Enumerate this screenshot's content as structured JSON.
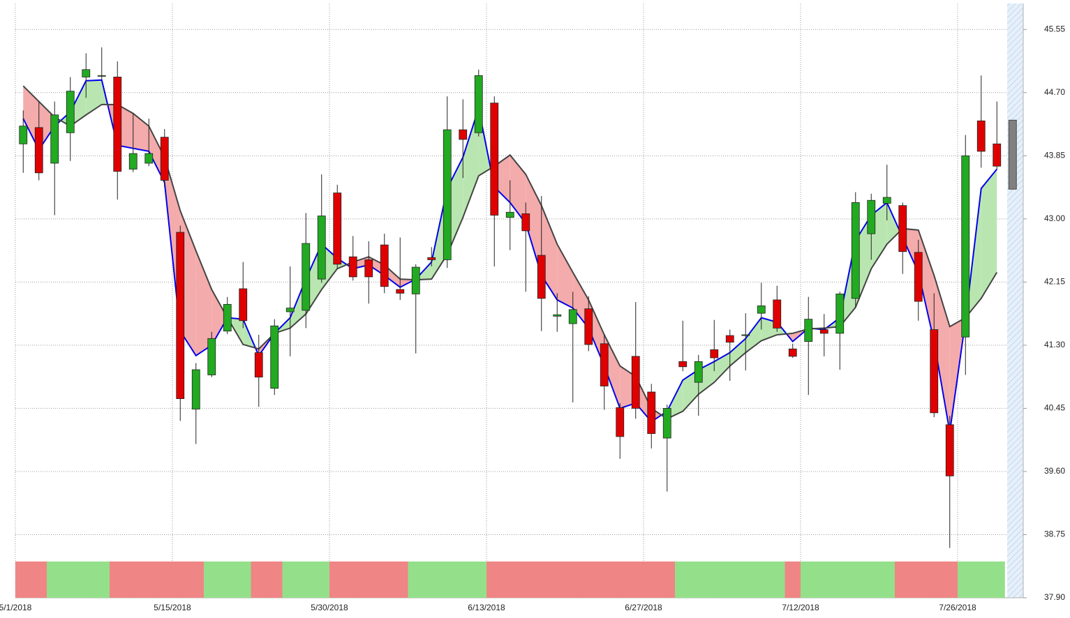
{
  "chart_data": {
    "type": "candlestick",
    "categories": [
      "5/1/2018",
      null,
      null,
      null,
      null,
      null,
      null,
      null,
      null,
      null,
      "5/15/2018",
      null,
      null,
      null,
      null,
      null,
      null,
      null,
      null,
      null,
      "5/30/2018",
      null,
      null,
      null,
      null,
      null,
      null,
      null,
      null,
      null,
      "6/13/2018",
      null,
      null,
      null,
      null,
      null,
      null,
      null,
      null,
      null,
      "6/27/2018",
      null,
      null,
      null,
      null,
      null,
      null,
      null,
      null,
      null,
      "7/12/2018",
      null,
      null,
      null,
      null,
      null,
      null,
      null,
      null,
      null,
      "7/26/2018",
      null,
      null
    ],
    "open": [
      44.01,
      44.23,
      43.75,
      44.16,
      44.91,
      44.92,
      44.91,
      43.67,
      43.75,
      44.1,
      42.82,
      40.44,
      40.9,
      41.49,
      42.06,
      41.2,
      40.72,
      41.75,
      41.77,
      42.19,
      43.35,
      42.49,
      42.45,
      42.65,
      42.05,
      41.99,
      42.48,
      42.45,
      44.2,
      44.16,
      44.56,
      43.02,
      43.07,
      42.51,
      41.69,
      41.59,
      41.79,
      41.32,
      40.46,
      41.15,
      40.67,
      40.05,
      41.08,
      40.8,
      41.24,
      41.43,
      41.43,
      41.73,
      41.91,
      41.25,
      41.35,
      41.51,
      41.46,
      41.93,
      42.8,
      43.21,
      43.18,
      42.55,
      41.51,
      40.23,
      41.41,
      44.32,
      44.01
    ],
    "high": [
      44.46,
      44.58,
      44.58,
      44.91,
      45.23,
      45.31,
      45.12,
      44.42,
      44.35,
      44.21,
      42.91,
      41.06,
      41.48,
      41.95,
      42.42,
      41.44,
      41.65,
      42.36,
      43.08,
      43.6,
      43.46,
      42.77,
      42.7,
      42.8,
      42.75,
      42.39,
      42.62,
      44.65,
      44.61,
      45.01,
      44.65,
      43.52,
      43.22,
      43.31,
      42.0,
      42.02,
      41.96,
      41.44,
      40.52,
      41.88,
      40.78,
      40.5,
      41.63,
      41.17,
      41.64,
      41.51,
      41.73,
      42.14,
      42.1,
      41.32,
      41.95,
      41.72,
      42.02,
      43.36,
      43.34,
      43.73,
      43.22,
      42.72,
      42.0,
      40.35,
      44.13,
      44.93,
      44.58
    ],
    "low": [
      43.62,
      43.52,
      43.05,
      43.78,
      44.63,
      44.88,
      43.26,
      43.63,
      43.71,
      43.43,
      40.28,
      39.97,
      40.87,
      41.45,
      41.53,
      40.47,
      40.63,
      41.15,
      41.53,
      42.14,
      42.33,
      42.17,
      41.86,
      42.0,
      41.91,
      41.19,
      42.36,
      42.34,
      43.55,
      44.11,
      42.36,
      42.58,
      42.02,
      41.49,
      41.48,
      40.53,
      41.22,
      40.43,
      39.77,
      40.31,
      39.91,
      39.33,
      40.95,
      40.35,
      40.95,
      40.82,
      40.96,
      41.51,
      41.48,
      41.13,
      40.63,
      41.15,
      40.97,
      41.81,
      42.45,
      42.98,
      42.26,
      41.63,
      40.33,
      38.57,
      40.9,
      43.69,
      43.67
    ],
    "close": [
      44.25,
      43.62,
      44.4,
      44.72,
      45.01,
      44.93,
      43.64,
      43.88,
      43.88,
      43.52,
      40.58,
      40.97,
      41.39,
      41.85,
      41.63,
      40.87,
      41.56,
      41.8,
      42.67,
      43.04,
      42.39,
      42.22,
      42.22,
      42.09,
      42.0,
      42.35,
      42.45,
      44.2,
      44.07,
      44.93,
      43.05,
      43.09,
      42.84,
      41.93,
      41.71,
      41.78,
      41.31,
      40.75,
      40.07,
      40.45,
      40.11,
      40.45,
      41.01,
      41.08,
      41.13,
      41.34,
      41.44,
      41.83,
      41.53,
      41.15,
      41.65,
      41.46,
      41.99,
      43.22,
      43.25,
      43.29,
      42.56,
      41.89,
      40.39,
      39.54,
      43.85,
      43.91,
      43.71
    ],
    "pending": {
      "open": 44.33,
      "close": 43.4,
      "color": "#808080"
    },
    "up_color": "#22aa22",
    "down_color": "#e00000",
    "series": [
      {
        "color": "#0000ee",
        "values": [
          44.35,
          43.93,
          44.25,
          44.44,
          44.86,
          44.87,
          43.99,
          43.95,
          43.91,
          43.49,
          41.49,
          41.16,
          41.3,
          41.67,
          41.65,
          41.16,
          41.46,
          41.67,
          42.19,
          42.66,
          42.47,
          42.33,
          42.38,
          42.24,
          42.08,
          42.19,
          42.42,
          43.41,
          43.83,
          44.49,
          43.43,
          43.22,
          42.94,
          42.24,
          41.91,
          41.8,
          41.53,
          41.02,
          40.45,
          40.52,
          40.27,
          40.41,
          40.83,
          40.97,
          41.08,
          41.2,
          41.39,
          41.67,
          41.61,
          41.35,
          41.53,
          41.51,
          41.67,
          42.71,
          43.05,
          43.22,
          42.75,
          42.28,
          41.35,
          40.13,
          41.63,
          43.41,
          43.67
        ]
      },
      {
        "color": "#444444",
        "values": [
          44.79,
          44.58,
          44.37,
          44.25,
          44.4,
          44.54,
          44.54,
          44.42,
          44.25,
          43.83,
          43.11,
          42.57,
          42.05,
          41.67,
          41.31,
          41.25,
          41.46,
          41.53,
          41.72,
          42.05,
          42.33,
          42.42,
          42.49,
          42.38,
          42.19,
          42.18,
          42.19,
          42.52,
          43.02,
          43.58,
          43.71,
          43.86,
          43.6,
          43.18,
          42.66,
          42.28,
          41.91,
          41.44,
          41.02,
          40.88,
          40.45,
          40.31,
          40.41,
          40.64,
          40.8,
          41.02,
          41.2,
          41.36,
          41.44,
          41.46,
          41.52,
          41.53,
          41.55,
          41.81,
          42.33,
          42.66,
          42.87,
          42.85,
          42.24,
          41.55,
          41.67,
          41.93,
          42.28
        ]
      }
    ],
    "fill_up_color": "#b9e6b0",
    "fill_down_color": "#f4abab",
    "band_colors": [
      "#f08585",
      "#f08585",
      "#94e08a",
      "#94e08a",
      "#94e08a",
      "#94e08a",
      "#f08585",
      "#f08585",
      "#f08585",
      "#f08585",
      "#f08585",
      "#f08585",
      "#94e08a",
      "#94e08a",
      "#94e08a",
      "#f08585",
      "#f08585",
      "#94e08a",
      "#94e08a",
      "#94e08a",
      "#f08585",
      "#f08585",
      "#f08585",
      "#f08585",
      "#f08585",
      "#94e08a",
      "#94e08a",
      "#94e08a",
      "#94e08a",
      "#94e08a",
      "#f08585",
      "#f08585",
      "#f08585",
      "#f08585",
      "#f08585",
      "#f08585",
      "#f08585",
      "#f08585",
      "#f08585",
      "#f08585",
      "#f08585",
      "#f08585",
      "#94e08a",
      "#94e08a",
      "#94e08a",
      "#94e08a",
      "#94e08a",
      "#94e08a",
      "#94e08a",
      "#f08585",
      "#94e08a",
      "#94e08a",
      "#94e08a",
      "#94e08a",
      "#94e08a",
      "#94e08a",
      "#f08585",
      "#f08585",
      "#f08585",
      "#f08585",
      "#94e08a",
      "#94e08a",
      "#94e08a"
    ],
    "ylim": [
      37.9,
      45.9
    ],
    "yticks": [
      {
        "value": 37.9,
        "label": "37.90"
      },
      38.75,
      {
        "value": 39.6,
        "label": "39.60"
      },
      40.45,
      {
        "value": 41.3,
        "label": "41.30"
      },
      42.15,
      {
        "value": 43.0,
        "label": "43.00"
      },
      43.85,
      {
        "value": 44.7,
        "label": "44.70"
      },
      45.55
    ],
    "grid": true
  }
}
